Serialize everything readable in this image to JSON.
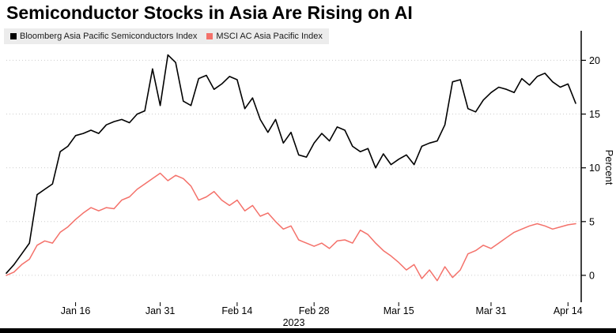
{
  "title": "Semiconductor Stocks in Asia Are Rising on AI",
  "legend": {
    "items": [
      {
        "label": "Bloomberg Asia Pacific Semiconductors Index",
        "color": "#000000"
      },
      {
        "label": "MSCI AC Asia Pacific Index",
        "color": "#f4716a"
      }
    ]
  },
  "colors": {
    "grid": "#cccccc",
    "axis": "#000000",
    "legend_background": "#ececec"
  },
  "chart_data": {
    "type": "line",
    "title": "Semiconductor Stocks in Asia Are Rising on AI",
    "xlabel": "2023",
    "ylabel": "Percent",
    "ylim": [
      -2.5,
      22.6
    ],
    "yticks": [
      0,
      5,
      10,
      15,
      20
    ],
    "x_tick_labels": [
      "Jan 16",
      "Jan 31",
      "Feb 14",
      "Feb 28",
      "Mar 15",
      "Mar 31",
      "Apr 14"
    ],
    "x_tick_indices": [
      9,
      20,
      30,
      40,
      51,
      63,
      73
    ],
    "grid": "horizontal-dotted",
    "legend_position": "top-left",
    "axis_side": "right",
    "series": [
      {
        "name": "Bloomberg Asia Pacific Semiconductors Index",
        "color": "#000000",
        "width": 1.6,
        "values": [
          0.2,
          1.0,
          2.0,
          3.0,
          7.5,
          8.0,
          8.5,
          11.5,
          12.0,
          13.0,
          13.2,
          13.5,
          13.2,
          14.0,
          14.3,
          14.5,
          14.2,
          15.0,
          15.3,
          19.2,
          15.8,
          20.5,
          19.8,
          16.2,
          15.8,
          18.3,
          18.6,
          17.3,
          17.8,
          18.5,
          18.2,
          15.5,
          16.5,
          14.5,
          13.3,
          14.5,
          12.3,
          13.3,
          11.2,
          11.0,
          12.3,
          13.2,
          12.5,
          13.8,
          13.5,
          12.0,
          11.5,
          11.8,
          10.0,
          11.3,
          10.3,
          10.8,
          11.2,
          10.3,
          12.0,
          12.3,
          12.5,
          14.0,
          18.0,
          18.2,
          15.5,
          15.2,
          16.3,
          17.0,
          17.5,
          17.3,
          17.0,
          18.3,
          17.7,
          18.5,
          18.8,
          18.0,
          17.5,
          17.8,
          16.0
        ]
      },
      {
        "name": "MSCI AC Asia Pacific Index",
        "color": "#f4716a",
        "width": 1.5,
        "values": [
          0.0,
          0.3,
          1.0,
          1.5,
          2.8,
          3.2,
          3.0,
          4.0,
          4.5,
          5.2,
          5.8,
          6.3,
          6.0,
          6.3,
          6.2,
          7.0,
          7.3,
          8.0,
          8.5,
          9.0,
          9.5,
          8.8,
          9.3,
          9.0,
          8.3,
          7.0,
          7.3,
          7.8,
          7.0,
          6.5,
          7.0,
          6.0,
          6.5,
          5.5,
          5.8,
          5.0,
          4.3,
          4.6,
          3.3,
          3.0,
          2.7,
          3.0,
          2.5,
          3.2,
          3.3,
          3.0,
          4.2,
          3.8,
          3.0,
          2.3,
          1.8,
          1.2,
          0.5,
          1.0,
          -0.3,
          0.5,
          -0.5,
          0.8,
          -0.2,
          0.5,
          2.0,
          2.3,
          2.8,
          2.5,
          3.0,
          3.5,
          4.0,
          4.3,
          4.6,
          4.8,
          4.6,
          4.3,
          4.5,
          4.7,
          4.8
        ]
      }
    ]
  }
}
